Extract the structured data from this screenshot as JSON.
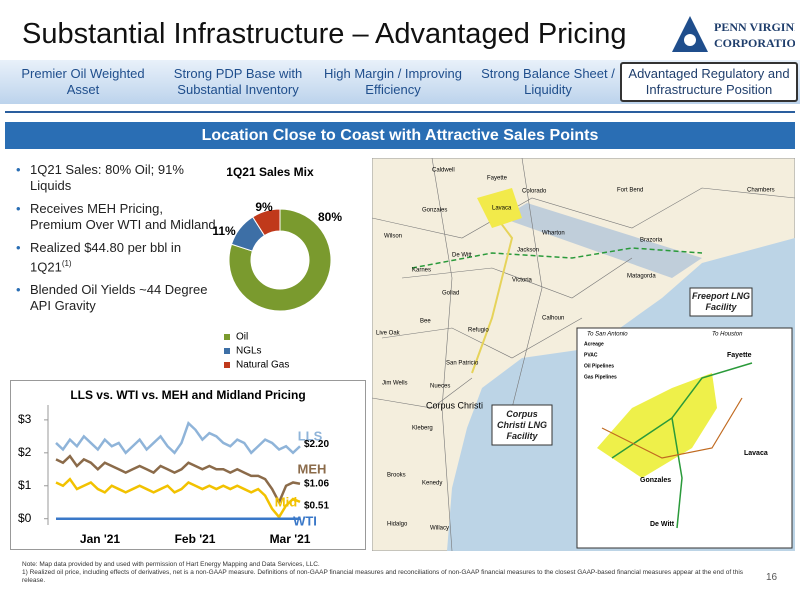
{
  "header": {
    "title": "Substantial Infrastructure – Advantaged Pricing",
    "logo_top": "Penn Virginia",
    "logo_bottom": "Corporation"
  },
  "tabs": [
    "Premier Oil Weighted Asset",
    "Strong PDP Base with Substantial Inventory",
    "High Margin / Improving Efficiency",
    "Strong Balance Sheet / Liquidity",
    "Advantaged Regulatory and Infrastructure Position"
  ],
  "banner": "Location Close to Coast with Attractive Sales Points",
  "bullets": [
    "1Q21 Sales: 80% Oil; 91% Liquids",
    "Receives MEH Pricing, Premium Over WTI and Midland",
    "Realized $44.80 per bbl in 1Q21",
    "Blended Oil Yields ~44 Degree API Gravity"
  ],
  "bullet_sup": "(1)",
  "sales_mix": {
    "type": "pie",
    "title": "1Q21 Sales Mix",
    "categories": [
      "Oil",
      "NGLs",
      "Natural Gas"
    ],
    "values": [
      80,
      11,
      9
    ],
    "value_labels": [
      "80%",
      "11%",
      "9%"
    ],
    "colors": [
      "#7a9a2e",
      "#3d6fa6",
      "#c0391b"
    ]
  },
  "pricing": {
    "type": "line",
    "title": "LLS vs. WTI vs. MEH and Midland Pricing",
    "x_labels": [
      "Jan '21",
      "Feb '21",
      "Mar '21"
    ],
    "ylim": [
      -0.1,
      3.3
    ],
    "yticks": [
      {
        "value": 0,
        "label": "$0"
      },
      {
        "value": 1,
        "label": "$1"
      },
      {
        "value": 2,
        "label": "$2"
      },
      {
        "value": 3,
        "label": "$3"
      }
    ],
    "series": [
      {
        "name": "LLS",
        "color": "#8fb4d9",
        "end_label": "$2.20",
        "values": [
          2.3,
          2.1,
          2.4,
          2.2,
          2.5,
          2.3,
          2.1,
          2.4,
          2.2,
          2.3,
          2.0,
          2.2,
          2.4,
          2.1,
          2.3,
          2.5,
          2.2,
          2.0,
          2.3,
          2.9,
          2.7,
          2.4,
          2.6,
          2.5,
          2.3,
          2.2,
          2.4,
          2.3,
          2.0,
          2.2,
          2.4,
          2.3,
          2.1,
          2.2,
          2.0,
          2.2
        ]
      },
      {
        "name": "MEH",
        "color": "#8b6b4a",
        "end_label": "$1.06",
        "values": [
          1.8,
          1.7,
          1.9,
          1.6,
          1.8,
          1.7,
          1.5,
          1.7,
          1.6,
          1.5,
          1.4,
          1.5,
          1.6,
          1.5,
          1.4,
          1.6,
          1.5,
          1.4,
          1.5,
          1.7,
          1.6,
          1.5,
          1.6,
          1.5,
          1.5,
          1.4,
          1.5,
          1.4,
          1.3,
          1.3,
          1.2,
          0.9,
          0.5,
          1.0,
          1.1,
          1.06
        ]
      },
      {
        "name": "Mid",
        "color": "#f2c200",
        "end_label": "$0.51",
        "values": [
          1.1,
          1.0,
          1.2,
          0.9,
          1.0,
          1.1,
          0.9,
          0.8,
          1.0,
          0.9,
          0.8,
          0.9,
          1.0,
          0.9,
          0.8,
          0.9,
          1.0,
          0.8,
          0.9,
          1.1,
          1.0,
          0.9,
          1.0,
          0.9,
          1.0,
          0.9,
          1.0,
          0.9,
          0.8,
          0.9,
          0.7,
          0.3,
          0.05,
          0.4,
          0.6,
          0.51
        ]
      },
      {
        "name": "WTI",
        "color": "#3a78c8",
        "values": [
          0,
          0,
          0,
          0,
          0,
          0,
          0,
          0,
          0,
          0,
          0,
          0,
          0,
          0,
          0,
          0,
          0,
          0,
          0,
          0,
          0,
          0,
          0,
          0,
          0,
          0,
          0,
          0,
          0,
          0,
          0,
          0,
          0,
          0,
          0,
          0
        ]
      }
    ]
  },
  "map": {
    "labels": [
      "Caldwell",
      "Fayette",
      "Colorado",
      "Fort Bend",
      "Chambers",
      "Gonzales",
      "Lavaca",
      "Wharton",
      "Brazoria",
      "Wilson",
      "De Witt",
      "Jackson",
      "Karnes",
      "Matagorda",
      "Goliad",
      "Victoria",
      "Bee",
      "Live Oak",
      "Refugio",
      "Calhoun",
      "San Patricio",
      "Jim Wells",
      "Nueces",
      "Corpus Christi",
      "Kleberg",
      "Brooks",
      "Kenedy",
      "Hidalgo",
      "Willacy"
    ],
    "freeport": "Freeport LNG Facility",
    "corpus": "Corpus Christi LNG Facility",
    "inset": {
      "labels": [
        "To San Antonio",
        "To Houston",
        "Fayette",
        "Lavaca",
        "Gonzales",
        "De Witt"
      ],
      "legend": [
        "Acreage",
        "PVAC",
        "Oil Pipelines",
        "Gas Pipelines"
      ]
    }
  },
  "footnote": [
    "Note: Map data provided by and used with permission of Hart Energy Mapping and Data Services, LLC.",
    "1) Realized oil price, including effects of derivatives, net is a non-GAAP measure. Definitions of non-GAAP financial measures and reconciliations of non-GAAP financial measures to the closest GAAP-based financial measures appear at the end of this release."
  ],
  "page_number": "16"
}
